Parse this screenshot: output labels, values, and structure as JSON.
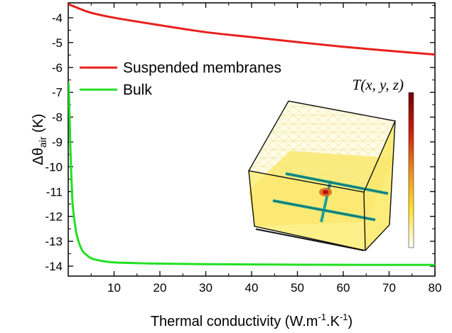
{
  "chart_data": {
    "type": "line",
    "xlabel": "Thermal conductivity (W.m",
    "xlabel_parts": {
      "base": "Thermal conductivity (W.m",
      "sup1": "-1",
      "mid": ".K",
      "sup2": "-1",
      "end": ")"
    },
    "ylabel_parts": {
      "base": "Δθ",
      "sub": "air",
      "end": " (K)"
    },
    "xlim": [
      0,
      80
    ],
    "ylim": [
      -14.4,
      -3.4
    ],
    "x_ticks": [
      10,
      20,
      30,
      40,
      50,
      60,
      70,
      80
    ],
    "y_ticks": [
      -4,
      -5,
      -6,
      -7,
      -8,
      -9,
      -10,
      -11,
      -12,
      -13,
      -14
    ],
    "legend_position": "top-left",
    "series": [
      {
        "name": "Suspended membranes",
        "color": "#e8201c",
        "x": [
          0,
          2,
          5,
          10,
          20,
          30,
          40,
          50,
          60,
          70,
          80
        ],
        "y": [
          -3.45,
          -3.6,
          -3.8,
          -4.0,
          -4.3,
          -4.58,
          -4.78,
          -4.98,
          -5.17,
          -5.33,
          -5.48
        ]
      },
      {
        "name": "Bulk",
        "color": "#22e022",
        "x": [
          0.05,
          0.2,
          0.4,
          0.6,
          0.8,
          1.0,
          1.5,
          2,
          3,
          4,
          5,
          7,
          10,
          15,
          20,
          30,
          40,
          50,
          60,
          70,
          80
        ],
        "y": [
          -6.6,
          -7.3,
          -8.8,
          -10.0,
          -10.9,
          -11.6,
          -12.35,
          -12.85,
          -13.35,
          -13.55,
          -13.68,
          -13.78,
          -13.85,
          -13.88,
          -13.9,
          -13.92,
          -13.93,
          -13.94,
          -13.945,
          -13.95,
          -13.95
        ]
      }
    ]
  },
  "inset": {
    "colorbar_title": "T(x, y, z)",
    "colorbar_stops": [
      "#ffffff",
      "#ffe12a",
      "#ee8a18",
      "#cc1d0c",
      "#6e0000"
    ],
    "box_fill": "#fdf08a",
    "mesh_color": "#e9d96c",
    "beam_color": "#1fa095",
    "hotspot_color": "#d0201a"
  }
}
